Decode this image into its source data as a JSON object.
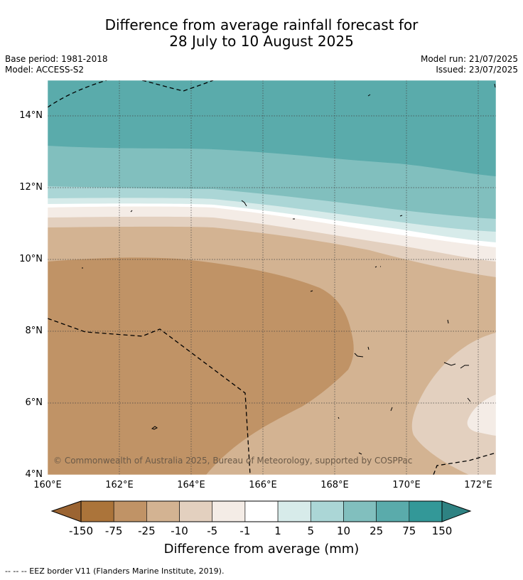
{
  "title": {
    "line1": "Difference from average rainfall forecast for",
    "line2": "28 July to 10 August 2025"
  },
  "meta": {
    "base_period": "Base period: 1981-2018",
    "model": "Model: ACCESS-S2",
    "model_run": "Model run: 21/07/2025",
    "issued": "Issued: 23/07/2025"
  },
  "map": {
    "y_ticks": [
      "14°N",
      "12°N",
      "10°N",
      "8°N",
      "6°N",
      "4°N"
    ],
    "x_ticks": [
      "160°E",
      "162°E",
      "164°E",
      "166°E",
      "168°E",
      "170°E",
      "172°E"
    ],
    "copyright": "© Commonwealth of Australia 2025, Bureau of Meteorology, supported by COSPPac"
  },
  "colorbar": {
    "ticks": [
      "-150",
      "-75",
      "-25",
      "-10",
      "-5",
      "-1",
      "1",
      "5",
      "10",
      "25",
      "75",
      "150"
    ],
    "colors": [
      "#ab743a",
      "#c09366",
      "#d3b392",
      "#e3d0bf",
      "#f4ece6",
      "#ffffff",
      "#d7ebea",
      "#abd6d6",
      "#81bfbe",
      "#5aabab",
      "#339898"
    ],
    "below_color": "#9b6432",
    "above_color": "#2e8282",
    "label": "Difference from average (mm)"
  },
  "legend_note": "--  --  -- EEZ border V11 (Flanders Marine Institute, 2019)."
}
